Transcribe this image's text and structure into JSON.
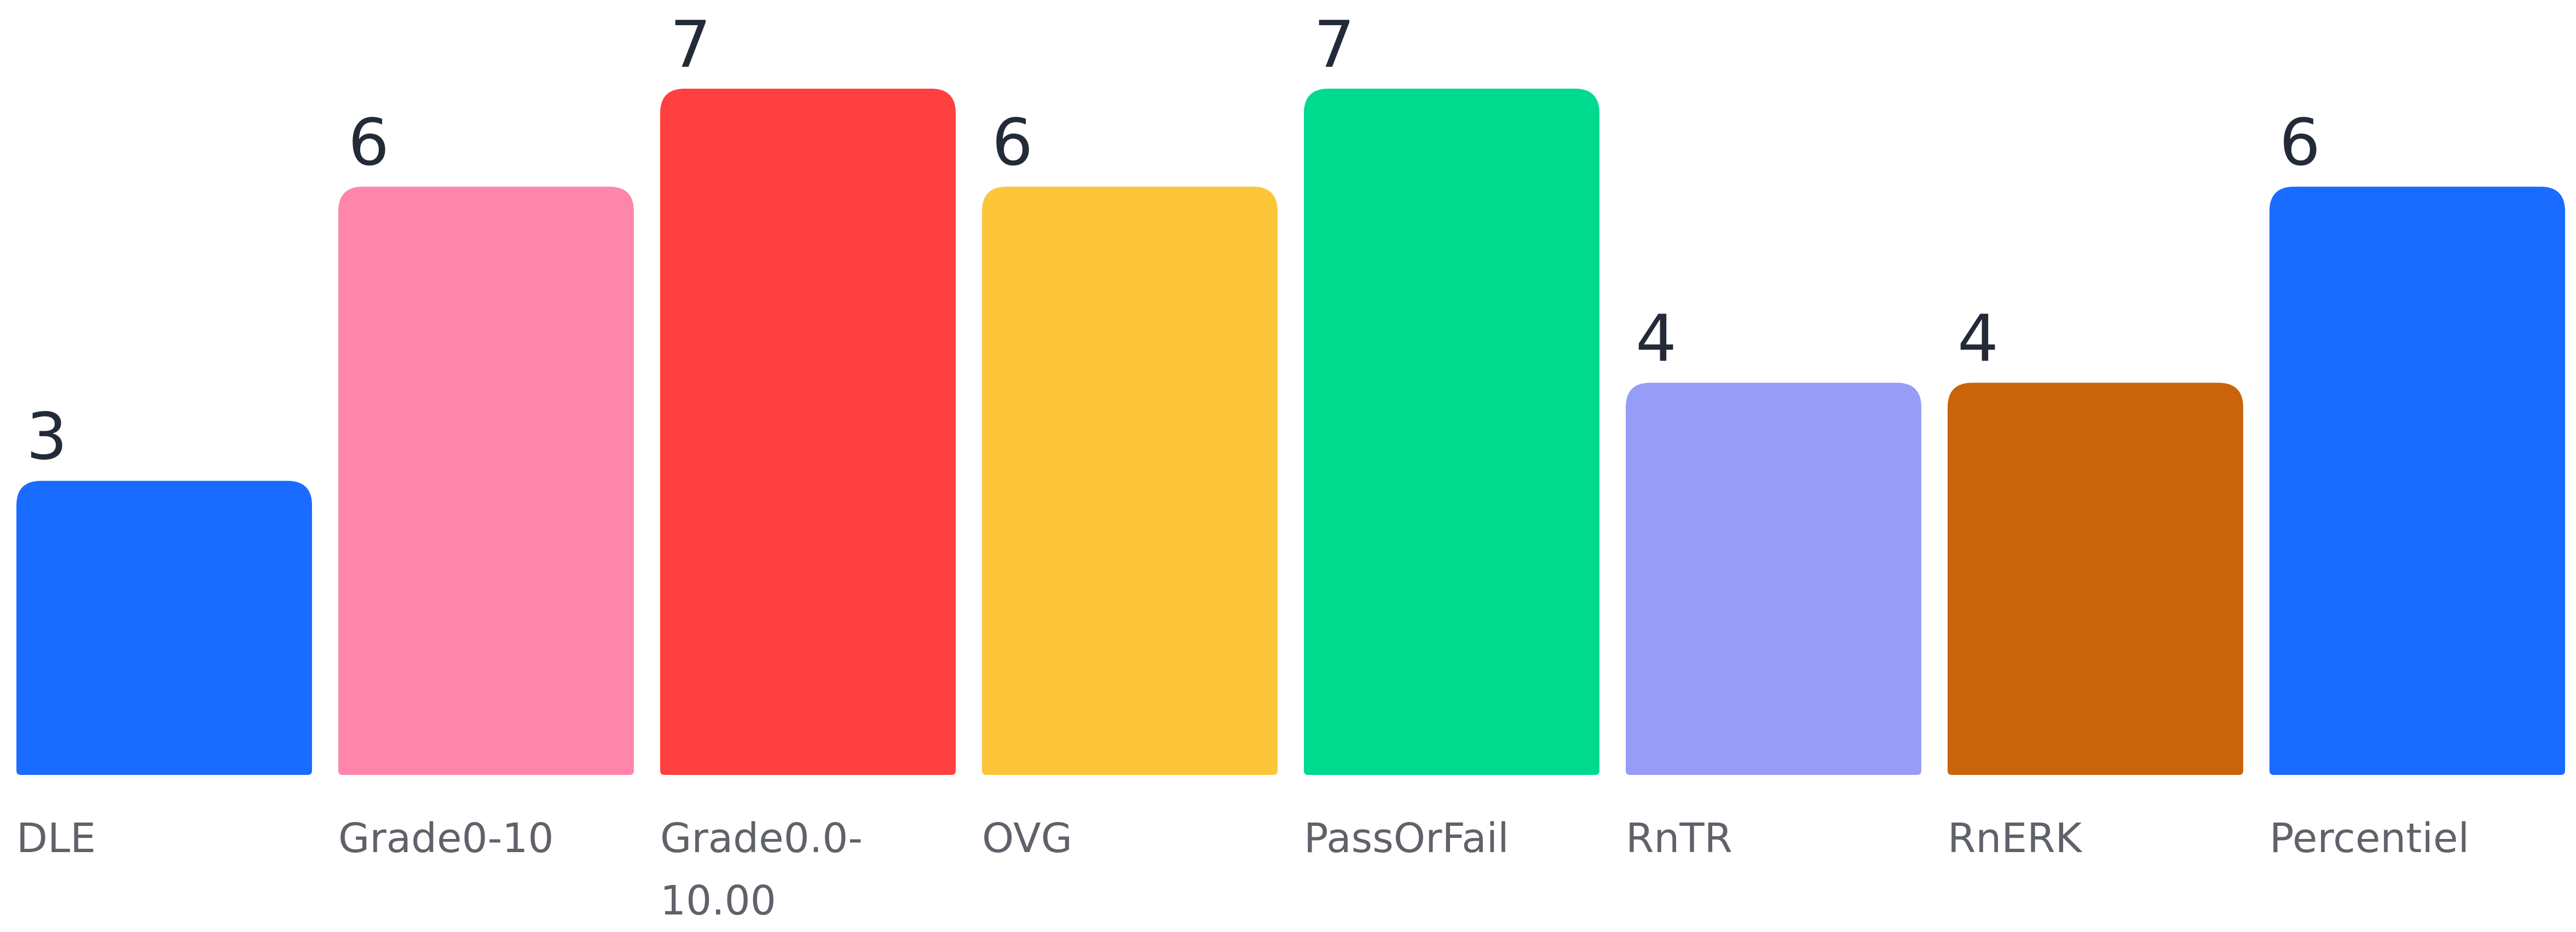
{
  "chart_data": {
    "type": "bar",
    "categories": [
      "DLE",
      "Grade0-10",
      "Grade0.0-10.00",
      "OVG",
      "PassOrFail",
      "RnTR",
      "RnERK",
      "Percentiel"
    ],
    "values": [
      3,
      6,
      7,
      6,
      7,
      4,
      4,
      6
    ],
    "colors": [
      "#1a6bff",
      "#ff85aa",
      "#ff4040",
      "#fdc539",
      "#00da8e",
      "#979cf6",
      "#c9640b",
      "#1a6bff"
    ],
    "ylim": [
      0,
      7
    ]
  }
}
